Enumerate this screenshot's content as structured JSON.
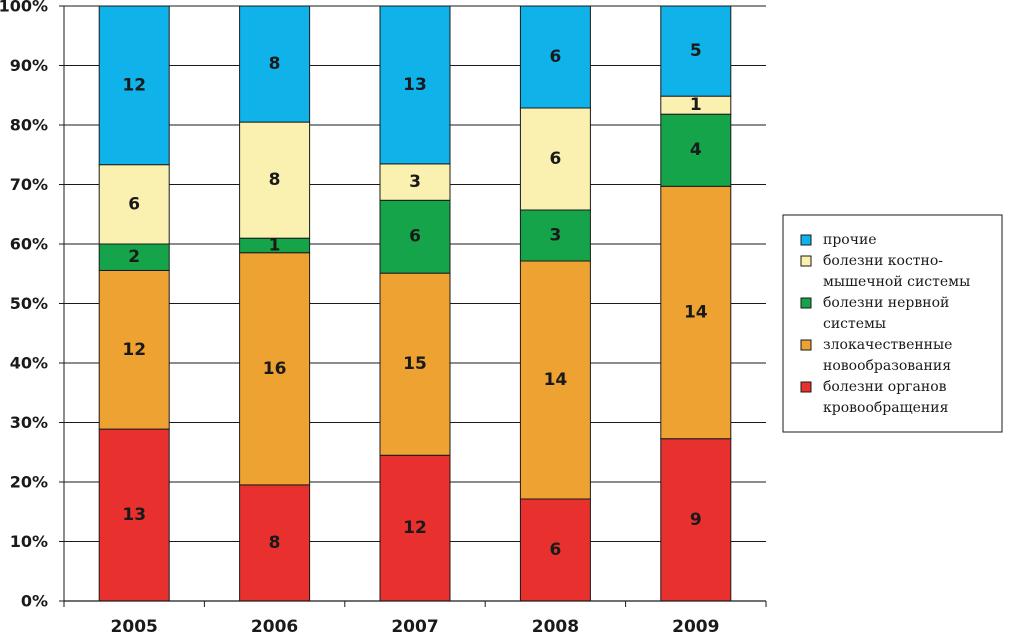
{
  "chart_data": {
    "type": "bar",
    "stacked": "percent",
    "categories": [
      "2005",
      "2006",
      "2007",
      "2008",
      "2009"
    ],
    "series": [
      {
        "name": "болезни органов кровообращения",
        "legend_lines": [
          "болезни органов",
          "кровообращения"
        ],
        "color": "#e8302f",
        "values": [
          13,
          8,
          12,
          6,
          9
        ]
      },
      {
        "name": "злокачественные новообразования",
        "legend_lines": [
          "злокачественные",
          "новообразования"
        ],
        "color": "#eea231",
        "values": [
          12,
          16,
          15,
          14,
          14
        ]
      },
      {
        "name": "болезни нервной системы",
        "legend_lines": [
          "болезни нервной",
          "системы"
        ],
        "color": "#16a44b",
        "values": [
          2,
          1,
          6,
          3,
          4
        ]
      },
      {
        "name": "болезни костно-мышечной системы",
        "legend_lines": [
          "болезни костно-",
          "мышечной системы"
        ],
        "color": "#faf0b0",
        "values": [
          6,
          8,
          3,
          6,
          1
        ]
      },
      {
        "name": "прочие",
        "legend_lines": [
          "прочие"
        ],
        "color": "#10b2ea",
        "values": [
          12,
          8,
          13,
          6,
          5
        ]
      }
    ],
    "ylim": [
      0,
      100
    ],
    "yticks": [
      "0%",
      "10%",
      "20%",
      "30%",
      "40%",
      "50%",
      "60%",
      "70%",
      "80%",
      "90%",
      "100%"
    ],
    "grid": true,
    "legend": "right",
    "title": "",
    "xlabel": "",
    "ylabel": ""
  }
}
